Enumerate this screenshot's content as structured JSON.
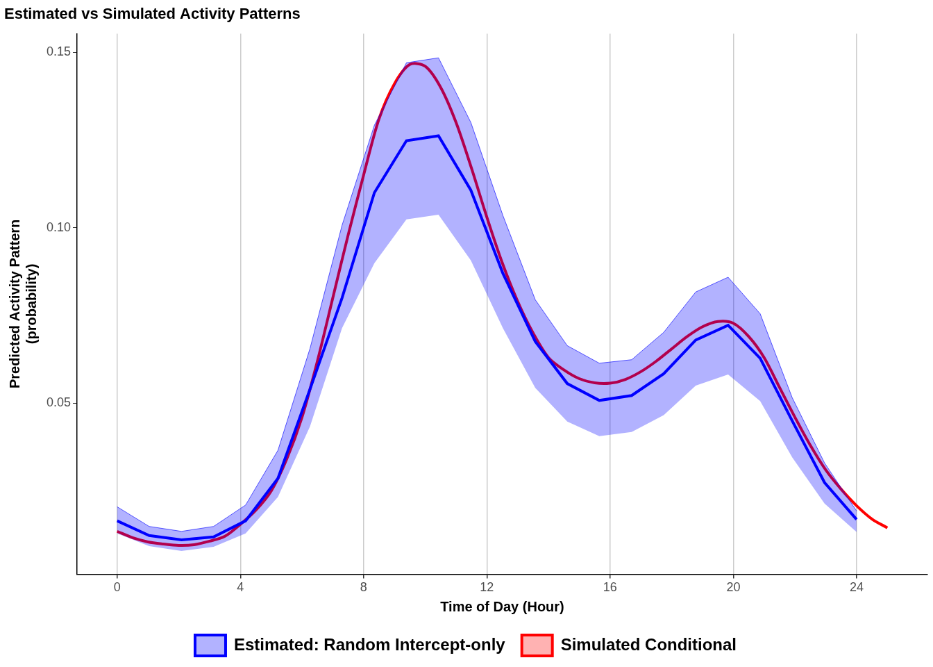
{
  "chart_data": {
    "type": "line",
    "title": "Estimated vs Simulated Activity Patterns",
    "x_label": "Time of Day (Hour)",
    "y_label": [
      "Predicted Activity Pattern",
      "(probability)"
    ],
    "xlim": [
      -1.3,
      26.3
    ],
    "xticks": [
      0,
      4,
      8,
      12,
      16,
      20,
      24
    ],
    "ylim": [
      0.0013,
      0.1553
    ],
    "yticks": [
      0.05,
      {
        "value": 0.1,
        "label": "0.10"
      },
      0.15
    ],
    "grid": "x",
    "legend": "bottom",
    "series": [
      {
        "name": "Estimated: Random Intercept-only",
        "color": "#0000ff",
        "x": [
          0,
          1.04,
          2.09,
          3.13,
          4.17,
          5.22,
          6.26,
          7.3,
          8.35,
          9.39,
          10.43,
          11.48,
          12.52,
          13.57,
          14.61,
          15.65,
          16.7,
          17.74,
          18.78,
          19.83,
          20.87,
          21.91,
          22.96,
          24
        ],
        "values": [
          0.0165,
          0.0123,
          0.0111,
          0.0119,
          0.0165,
          0.0286,
          0.054,
          0.08,
          0.11,
          0.1248,
          0.1262,
          0.1107,
          0.087,
          0.0676,
          0.0556,
          0.0508,
          0.0522,
          0.0584,
          0.068,
          0.0722,
          0.0628,
          0.045,
          0.0274,
          0.0169
        ],
        "lower": [
          0.0129,
          0.0093,
          0.0079,
          0.0091,
          0.0129,
          0.0233,
          0.0434,
          0.0714,
          0.0899,
          0.1024,
          0.1037,
          0.0907,
          0.0714,
          0.0544,
          0.0448,
          0.0406,
          0.0418,
          0.0466,
          0.055,
          0.0582,
          0.0506,
          0.0346,
          0.0214,
          0.0133
        ],
        "upper": [
          0.0205,
          0.0149,
          0.0135,
          0.0149,
          0.021,
          0.0366,
          0.0656,
          0.1007,
          0.1292,
          0.147,
          0.1484,
          0.13,
          0.1035,
          0.0795,
          0.0664,
          0.0614,
          0.0624,
          0.0702,
          0.0817,
          0.0859,
          0.0755,
          0.0516,
          0.033,
          0.0193
        ]
      },
      {
        "name": "Simulated Conditional",
        "color": "#ff0000",
        "x": [
          0,
          0.5,
          1,
          1.5,
          2,
          2.5,
          3,
          3.5,
          4,
          4.5,
          5,
          5.5,
          6,
          6.5,
          7,
          7.5,
          8,
          8.5,
          9,
          9.5,
          10,
          10.5,
          11,
          11.5,
          12,
          12.5,
          13,
          13.5,
          14,
          14.5,
          15,
          15.5,
          16,
          16.5,
          17,
          17.5,
          18,
          18.5,
          19,
          19.5,
          20,
          20.5,
          21,
          21.5,
          22,
          22.5,
          23,
          23.5,
          24,
          24.5,
          25
        ],
        "values": [
          0.0135,
          0.0117,
          0.0105,
          0.0099,
          0.0095,
          0.0097,
          0.0107,
          0.0121,
          0.0155,
          0.0195,
          0.025,
          0.034,
          0.046,
          0.062,
          0.08,
          0.098,
          0.115,
          0.131,
          0.141,
          0.1465,
          0.146,
          0.14,
          0.13,
          0.117,
          0.103,
          0.09,
          0.079,
          0.07,
          0.063,
          0.0595,
          0.057,
          0.0558,
          0.0557,
          0.0568,
          0.059,
          0.062,
          0.0655,
          0.069,
          0.0718,
          0.0733,
          0.0728,
          0.069,
          0.063,
          0.0545,
          0.046,
          0.038,
          0.031,
          0.0255,
          0.0208,
          0.017,
          0.0145
        ]
      }
    ]
  }
}
